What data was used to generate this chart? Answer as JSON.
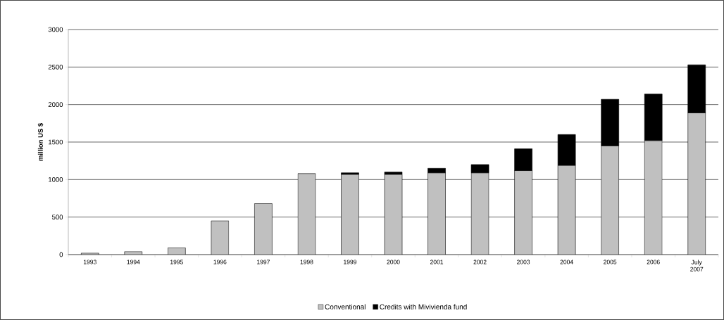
{
  "chart_data": {
    "type": "bar",
    "stacked": true,
    "ylabel": "million US $",
    "categories": [
      "1993",
      "1994",
      "1995",
      "1996",
      "1997",
      "1998",
      "1999",
      "2000",
      "2001",
      "2002",
      "2003",
      "2004",
      "2005",
      "2006",
      "July 2007"
    ],
    "series": [
      {
        "name": "Conventional",
        "color": "#c0c0c0",
        "values": [
          20,
          40,
          90,
          450,
          680,
          1080,
          1070,
          1070,
          1090,
          1090,
          1120,
          1190,
          1450,
          1520,
          1890
        ]
      },
      {
        "name": "Credits with Mivivienda fund",
        "color": "#000000",
        "values": [
          null,
          null,
          null,
          null,
          null,
          null,
          20,
          30,
          60,
          110,
          290,
          410,
          620,
          620,
          640
        ]
      }
    ],
    "ylim": [
      0,
      3000
    ],
    "yticks": [
      0,
      500,
      1000,
      1500,
      2000,
      2500,
      3000
    ],
    "grid": "y",
    "legend": "bottom"
  }
}
